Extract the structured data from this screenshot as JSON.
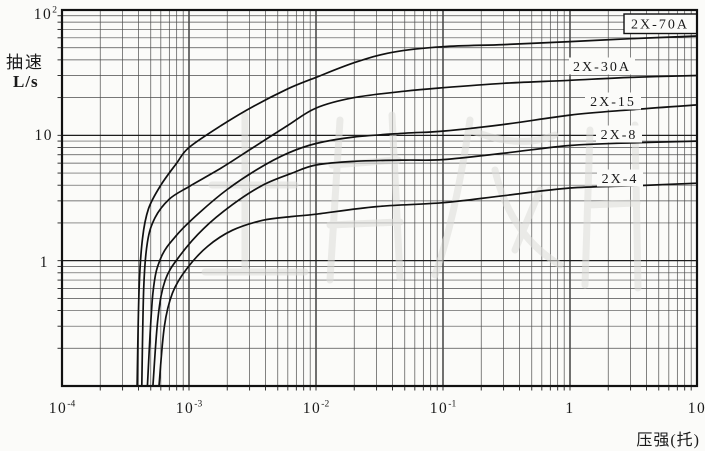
{
  "chart_data": {
    "type": "line",
    "title": "",
    "xlabel": "压强(托)",
    "ylabel": "抽速 L/s",
    "x_axis": {
      "label": "压强(托)",
      "scale": "log",
      "min": 0.0001,
      "max": 10,
      "ticks": [
        {
          "text": "10",
          "sup": "-4",
          "value": 0.0001
        },
        {
          "text": "10",
          "sup": "-3",
          "value": 0.001
        },
        {
          "text": "10",
          "sup": "-2",
          "value": 0.01
        },
        {
          "text": "10",
          "sup": "-1",
          "value": 0.1
        },
        {
          "text": "1",
          "sup": "",
          "value": 1
        },
        {
          "text": "10",
          "sup": "",
          "value": 10
        }
      ]
    },
    "y_axis": {
      "label_lines": [
        "抽速",
        "L/s"
      ],
      "scale": "log",
      "min": 0.1,
      "max": 100,
      "ticks": [
        {
          "text": "10",
          "sup": "2",
          "value": 100
        },
        {
          "text": "10",
          "sup": "",
          "value": 10
        },
        {
          "text": "1",
          "sup": "",
          "value": 1
        }
      ]
    },
    "grid": {
      "major": true,
      "minor": true,
      "style": "full log-log grid"
    },
    "series": [
      {
        "name": "2X-70A",
        "boxed": true,
        "label_xy": [
          660,
          23.5
        ],
        "points": [
          [
            0.00039,
            0.1
          ],
          [
            0.000405,
            0.6
          ],
          [
            0.00043,
            1.5
          ],
          [
            0.00048,
            2.6
          ],
          [
            0.0006,
            4.0
          ],
          [
            0.0008,
            6.0
          ],
          [
            0.001,
            8.0
          ],
          [
            0.0018,
            12
          ],
          [
            0.0032,
            17
          ],
          [
            0.006,
            23.5
          ],
          [
            0.01,
            29
          ],
          [
            0.02,
            38
          ],
          [
            0.04,
            46
          ],
          [
            0.1,
            51
          ],
          [
            0.3,
            53
          ],
          [
            1,
            56
          ],
          [
            3,
            59
          ],
          [
            10,
            62
          ]
        ]
      },
      {
        "name": "2X-30A",
        "boxed": false,
        "label_xy": [
          602,
          66
        ],
        "points": [
          [
            0.000425,
            0.1
          ],
          [
            0.00044,
            0.6
          ],
          [
            0.00047,
            1.4
          ],
          [
            0.00054,
            2.2
          ],
          [
            0.0007,
            3.1
          ],
          [
            0.001,
            3.9
          ],
          [
            0.0018,
            5.5
          ],
          [
            0.0032,
            8.0
          ],
          [
            0.006,
            12
          ],
          [
            0.01,
            16.5
          ],
          [
            0.02,
            20
          ],
          [
            0.05,
            22.5
          ],
          [
            0.1,
            24
          ],
          [
            0.3,
            26
          ],
          [
            1,
            27.5
          ],
          [
            3,
            29
          ],
          [
            10,
            30
          ]
        ]
      },
      {
        "name": "2X-15",
        "boxed": false,
        "label_xy": [
          613,
          101
        ],
        "points": [
          [
            0.00047,
            0.1
          ],
          [
            0.00052,
            0.55
          ],
          [
            0.0006,
            1.05
          ],
          [
            0.0008,
            1.6
          ],
          [
            0.0012,
            2.4
          ],
          [
            0.002,
            3.7
          ],
          [
            0.0035,
            5.4
          ],
          [
            0.006,
            7.2
          ],
          [
            0.01,
            8.6
          ],
          [
            0.02,
            9.7
          ],
          [
            0.05,
            10.4
          ],
          [
            0.1,
            10.8
          ],
          [
            0.3,
            12.2
          ],
          [
            1,
            14.5
          ],
          [
            3,
            16
          ],
          [
            10,
            17.5
          ]
        ]
      },
      {
        "name": "2X-8",
        "boxed": false,
        "label_xy": [
          619,
          134
        ],
        "points": [
          [
            0.00052,
            0.1
          ],
          [
            0.00057,
            0.35
          ],
          [
            0.00065,
            0.7
          ],
          [
            0.00085,
            1.1
          ],
          [
            0.0013,
            1.8
          ],
          [
            0.0022,
            2.8
          ],
          [
            0.0038,
            4.0
          ],
          [
            0.0065,
            5.0
          ],
          [
            0.01,
            5.8
          ],
          [
            0.02,
            6.2
          ],
          [
            0.05,
            6.35
          ],
          [
            0.1,
            6.4
          ],
          [
            0.3,
            7.2
          ],
          [
            1,
            8.3
          ],
          [
            3,
            8.7
          ],
          [
            10,
            9.0
          ]
        ]
      },
      {
        "name": "2X-4",
        "boxed": false,
        "label_xy": [
          620,
          178
        ],
        "points": [
          [
            0.00058,
            0.1
          ],
          [
            0.00064,
            0.3
          ],
          [
            0.00074,
            0.55
          ],
          [
            0.00095,
            0.85
          ],
          [
            0.0014,
            1.3
          ],
          [
            0.0022,
            1.75
          ],
          [
            0.0038,
            2.1
          ],
          [
            0.0065,
            2.25
          ],
          [
            0.01,
            2.35
          ],
          [
            0.03,
            2.7
          ],
          [
            0.1,
            2.9
          ],
          [
            0.3,
            3.3
          ],
          [
            1,
            3.8
          ],
          [
            3,
            3.95
          ],
          [
            10,
            4.15
          ]
        ]
      }
    ]
  },
  "colors": {
    "curve": "#111111",
    "grid_minor": "#4d4d4d",
    "grid_major": "#1d1d1d",
    "frame": "#111111",
    "background": "#fbfbf9",
    "text": "#1a1a1a",
    "watermark": "#dcdcd8"
  }
}
